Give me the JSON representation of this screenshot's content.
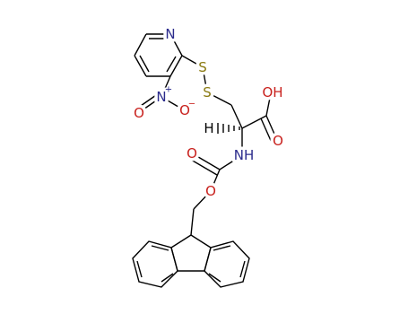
{
  "atoms": [
    {
      "label": "N"
    },
    {
      "label": "S"
    },
    {
      "label": "S"
    },
    {
      "label": "N"
    },
    {
      "label": "+"
    },
    {
      "label": "O"
    },
    {
      "label": "O"
    },
    {
      "label": "−"
    },
    {
      "label": "OH"
    },
    {
      "label": "O"
    },
    {
      "label": "H"
    },
    {
      "label": "NH"
    },
    {
      "label": "O"
    },
    {
      "label": "O"
    }
  ]
}
